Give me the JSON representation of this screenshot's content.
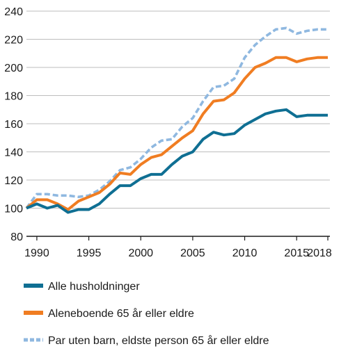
{
  "chart_data": {
    "type": "line",
    "title": "",
    "xlabel": "",
    "ylabel": "",
    "xlim": [
      1990,
      2018
    ],
    "ylim": [
      80,
      240
    ],
    "y_ticks": [
      80,
      100,
      120,
      140,
      160,
      180,
      200,
      220,
      240
    ],
    "x_ticks": [
      1990,
      1995,
      2000,
      2005,
      2010,
      2015,
      2018
    ],
    "x_tick_labels": [
      "1990",
      "1995",
      "2000",
      "2005",
      "2010",
      "2015",
      "2018"
    ],
    "grid": "y",
    "legend_position": "bottom",
    "x": [
      1989,
      1990,
      1991,
      1992,
      1993,
      1994,
      1995,
      1996,
      1997,
      1998,
      1999,
      2000,
      2001,
      2002,
      2003,
      2004,
      2005,
      2006,
      2007,
      2008,
      2009,
      2010,
      2011,
      2012,
      2013,
      2014,
      2015,
      2016,
      2017,
      2018
    ],
    "series": [
      {
        "name": "Alle husholdninger",
        "color": "#0f6f93",
        "style": "solid",
        "values": [
          100,
          103,
          100,
          102,
          97,
          99,
          99,
          103,
          110,
          116,
          116,
          121,
          124,
          124,
          131,
          137,
          140,
          149,
          154,
          152,
          153,
          159,
          163,
          167,
          169,
          170,
          165,
          166,
          166,
          166
        ]
      },
      {
        "name": "Aleneboende 65 år eller eldre",
        "color": "#f07d22",
        "style": "solid",
        "values": [
          100,
          106,
          106,
          103,
          99,
          105,
          108,
          111,
          117,
          125,
          124,
          131,
          136,
          138,
          144,
          150,
          155,
          167,
          176,
          177,
          182,
          192,
          200,
          203,
          207,
          207,
          204,
          206,
          207,
          207
        ]
      },
      {
        "name": "Par uten barn, eldste person 65 år eller eldre",
        "color": "#8fb8e0",
        "style": "dashed",
        "values": [
          100,
          110,
          110,
          109,
          109,
          108,
          109,
          113,
          119,
          127,
          129,
          135,
          143,
          148,
          149,
          158,
          164,
          176,
          186,
          187,
          192,
          207,
          216,
          222,
          227,
          228,
          224,
          226,
          227,
          227
        ]
      }
    ]
  }
}
